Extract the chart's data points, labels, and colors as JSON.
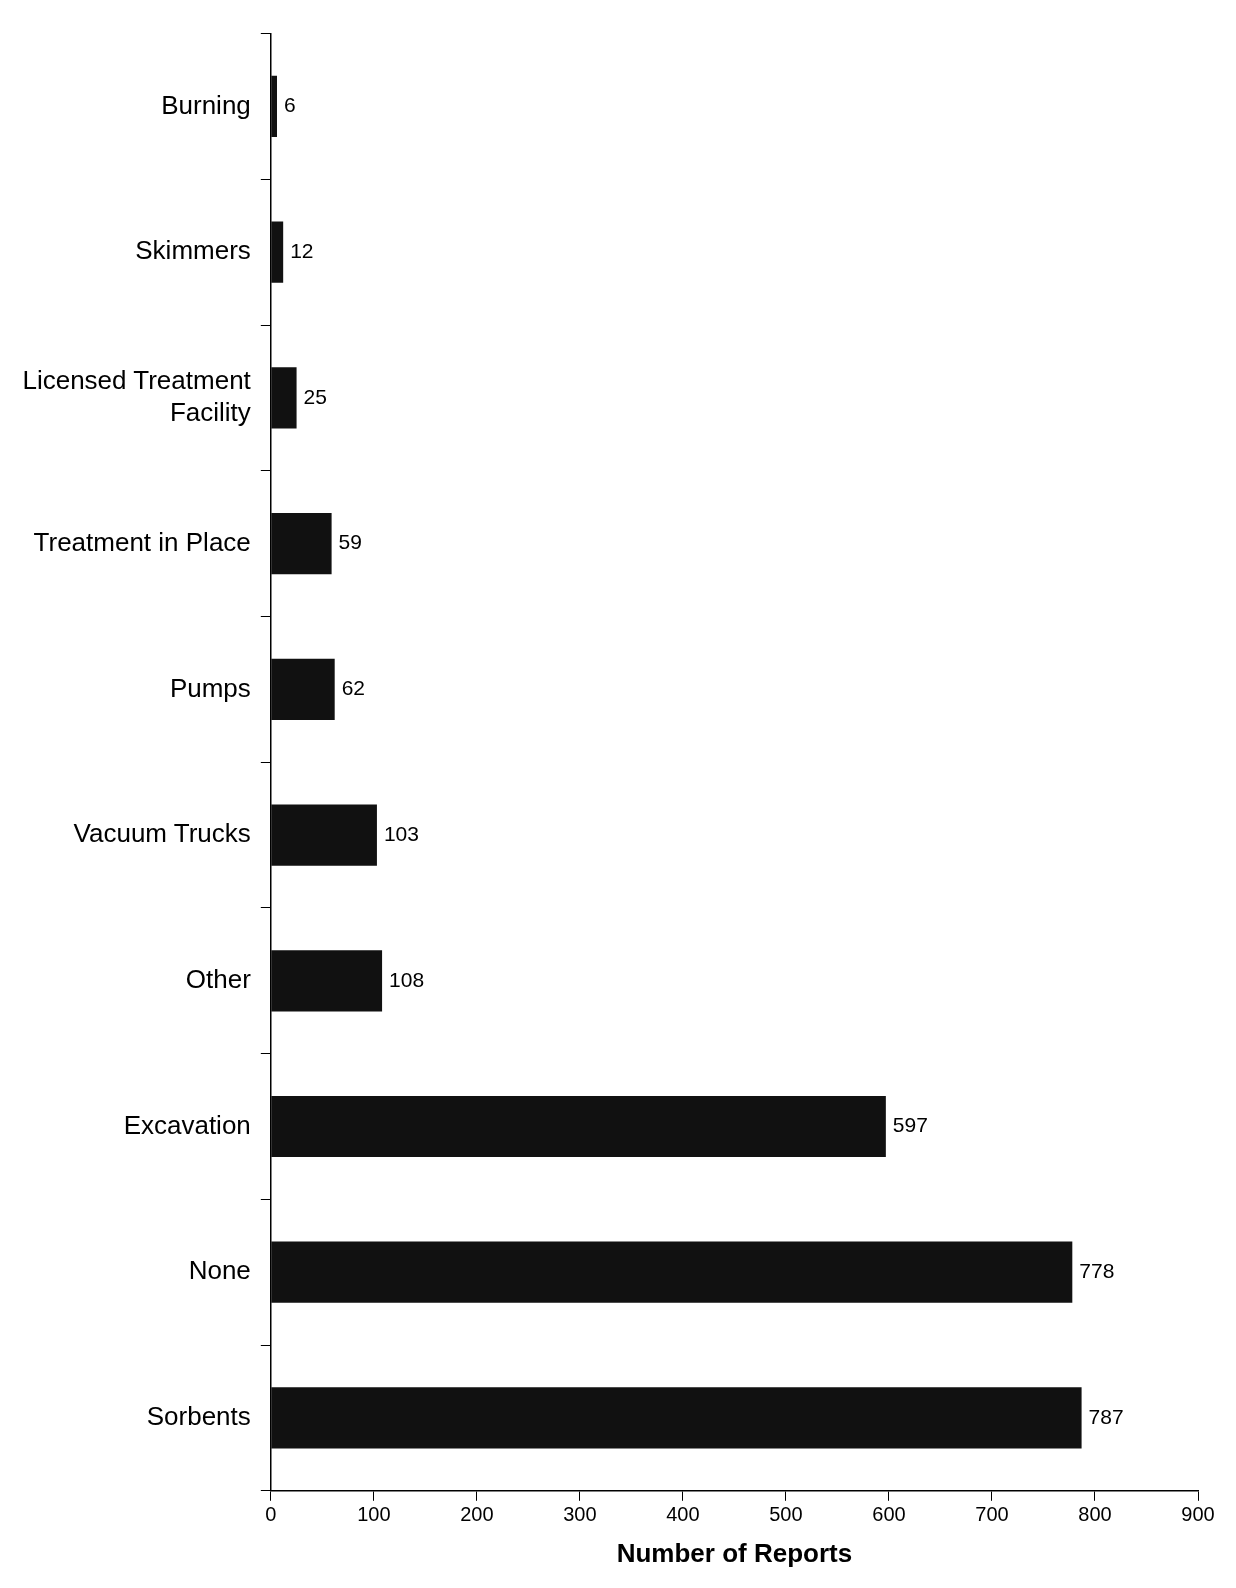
{
  "chart_data": {
    "type": "bar",
    "orientation": "horizontal",
    "xlabel": "Number of Reports",
    "categories": [
      "Burning",
      "Skimmers",
      "Licensed Treatment Facility",
      "Treatment in Place",
      "Pumps",
      "Vacuum Trucks",
      "Other",
      "Excavation",
      "None",
      "Sorbents"
    ],
    "values": [
      6,
      12,
      25,
      59,
      62,
      103,
      108,
      597,
      778,
      787
    ],
    "color": "#111111",
    "xlim": [
      0,
      900
    ],
    "xticks": [
      0,
      100,
      200,
      300,
      400,
      500,
      600,
      700,
      800,
      900
    ],
    "grid": false,
    "legend": false,
    "data_labels": true
  }
}
